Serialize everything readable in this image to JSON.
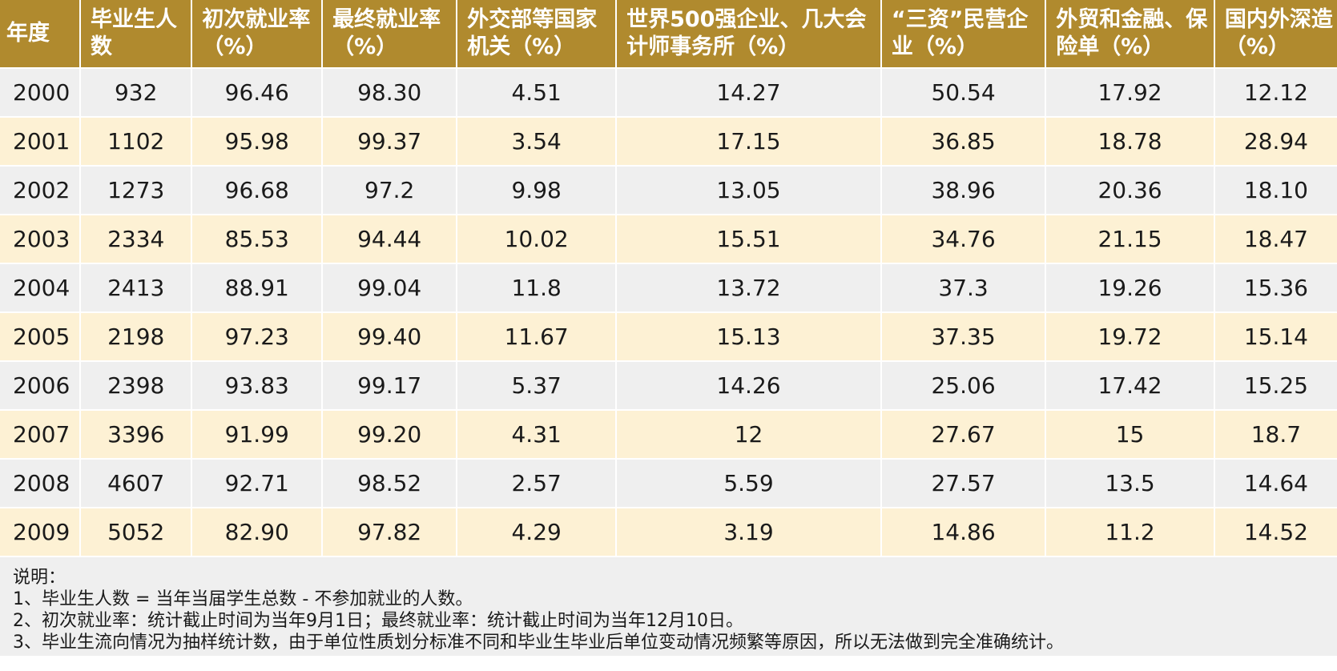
{
  "table": {
    "headers": [
      "年度",
      "毕业生人数",
      "初次就业率（%）",
      "最终就业率（%）",
      "外交部等国家机关（%）",
      "世界500强企业、几大会计师事务所（%）",
      "“三资”民营企业（%）",
      "外贸和金融、保险单（%）",
      "国内外深造（%）"
    ],
    "rows": [
      [
        "2000",
        "932",
        "96.46",
        "98.30",
        "4.51",
        "14.27",
        "50.54",
        "17.92",
        "12.12"
      ],
      [
        "2001",
        "1102",
        "95.98",
        "99.37",
        "3.54",
        "17.15",
        "36.85",
        "18.78",
        "28.94"
      ],
      [
        "2002",
        "1273",
        "96.68",
        "97.2",
        "9.98",
        "13.05",
        "38.96",
        "20.36",
        "18.10"
      ],
      [
        "2003",
        "2334",
        "85.53",
        "94.44",
        "10.02",
        "15.51",
        "34.76",
        "21.15",
        "18.47"
      ],
      [
        "2004",
        "2413",
        "88.91",
        "99.04",
        "11.8",
        "13.72",
        "37.3",
        "19.26",
        "15.36"
      ],
      [
        "2005",
        "2198",
        "97.23",
        "99.40",
        "11.67",
        "15.13",
        "37.35",
        "19.72",
        "15.14"
      ],
      [
        "2006",
        "2398",
        "93.83",
        "99.17",
        "5.37",
        "14.26",
        "25.06",
        "17.42",
        "15.25"
      ],
      [
        "2007",
        "3396",
        "91.99",
        "99.20",
        "4.31",
        "12",
        "27.67",
        "15",
        "18.7"
      ],
      [
        "2008",
        "4607",
        "92.71",
        "98.52",
        "2.57",
        "5.59",
        "27.57",
        "13.5",
        "14.64"
      ],
      [
        "2009",
        "5052",
        "82.90",
        "97.82",
        "4.29",
        "3.19",
        "14.86",
        "11.2",
        "14.52"
      ]
    ]
  },
  "notes": {
    "title": "说明：",
    "lines": [
      "1、毕业生人数 = 当年当届学生总数 - 不参加就业的人数。",
      "2、初次就业率：统计截止时间为当年9月1日；最终就业率：统计截止时间为当年12月10日。",
      "3、毕业生流向情况为抽样统计数，由于单位性质划分标准不同和毕业生毕业后单位变动情况频繁等原因，所以无法做到完全准确统计。"
    ]
  },
  "colors": {
    "header_bg": "#b08a2e",
    "header_text": "#ffffff",
    "row_gray": "#efefef",
    "row_cream": "#fdf1d4"
  }
}
